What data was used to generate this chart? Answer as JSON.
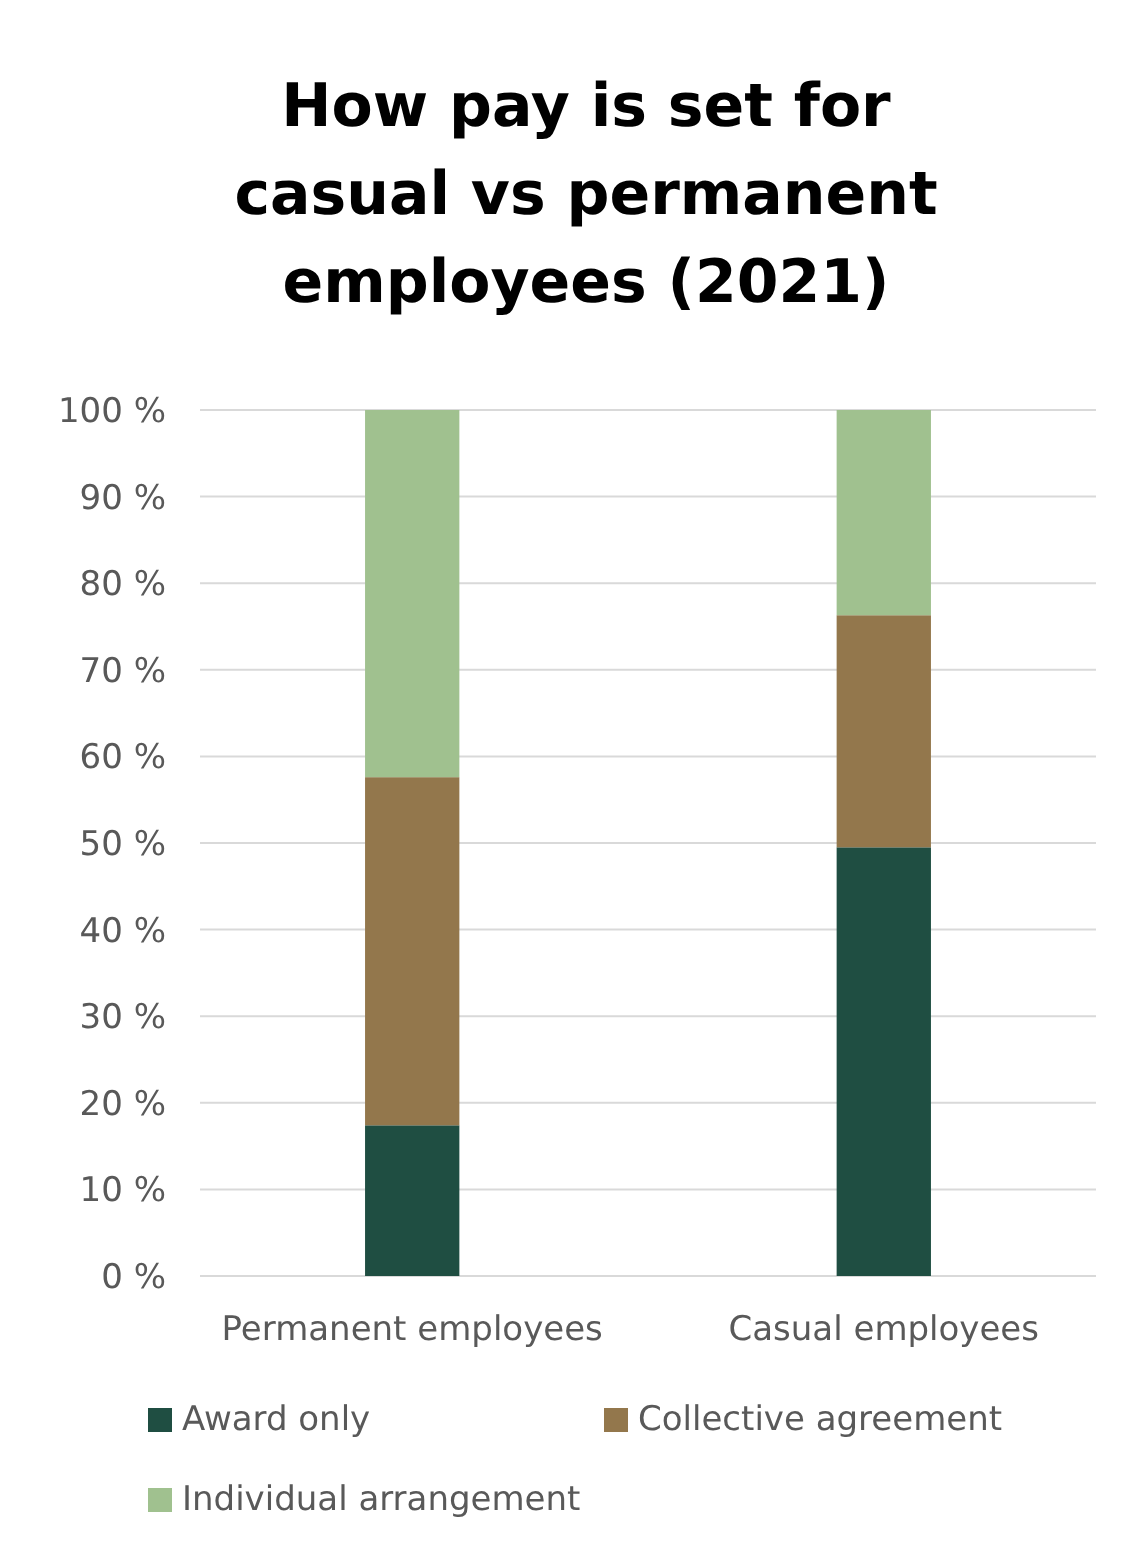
{
  "chart_data": {
    "type": "bar",
    "title": "How pay is set for casual vs permanent employees (2021)",
    "categories": [
      "Permanent employees",
      "Casual employees"
    ],
    "stacked": true,
    "series": [
      {
        "name": "Award only",
        "color": "#1f4e42",
        "values": [
          17.4,
          49.5
        ]
      },
      {
        "name": "Collective agreement",
        "color": "#93774c",
        "values": [
          40.2,
          26.8
        ]
      },
      {
        "name": "Individual arrangement",
        "color": "#a0c18f",
        "values": [
          42.4,
          23.7
        ]
      }
    ],
    "ylim": [
      0,
      100
    ],
    "yticks": [
      {
        "value": 0,
        "label": "0 %"
      },
      {
        "value": 10,
        "label": "10 %"
      },
      {
        "value": 20,
        "label": "20 %"
      },
      {
        "value": 30,
        "label": "30 %"
      },
      {
        "value": 40,
        "label": "40 %"
      },
      {
        "value": 50,
        "label": "50 %"
      },
      {
        "value": 60,
        "label": "60 %"
      },
      {
        "value": 70,
        "label": "70 %"
      },
      {
        "value": 80,
        "label": "80 %"
      },
      {
        "value": 90,
        "label": "90 %"
      },
      {
        "value": 100,
        "label": "100 %"
      }
    ],
    "grid": "y",
    "legend": "bottom"
  }
}
